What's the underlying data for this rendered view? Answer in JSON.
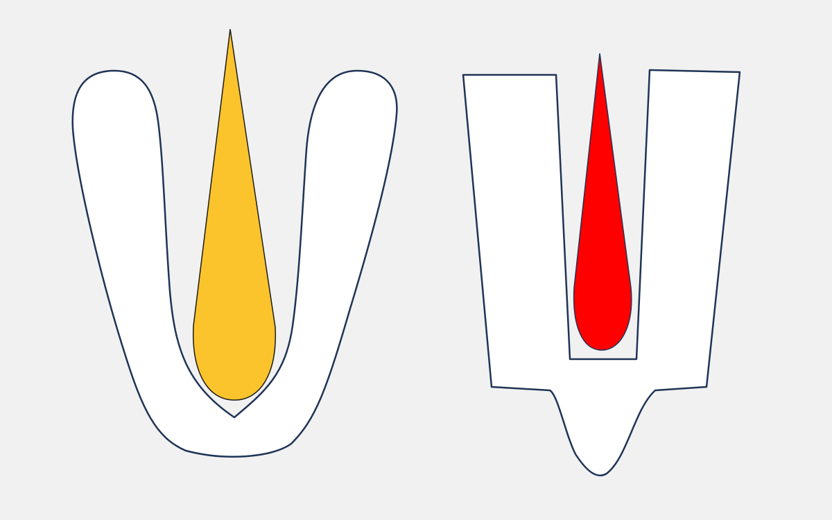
{
  "colors": {
    "background": "#f1f1f1",
    "shape_fill": "#ffffff",
    "outline": "#1f3356",
    "left_flame": "#fcc42c",
    "right_flame": "#ff0000",
    "flame_outline": "#1b1b1b"
  },
  "figures": [
    {
      "name": "u-shaped-tilak-mark",
      "flame_color": "left_flame"
    },
    {
      "name": "y-shaped-tilak-mark",
      "flame_color": "right_flame"
    }
  ]
}
